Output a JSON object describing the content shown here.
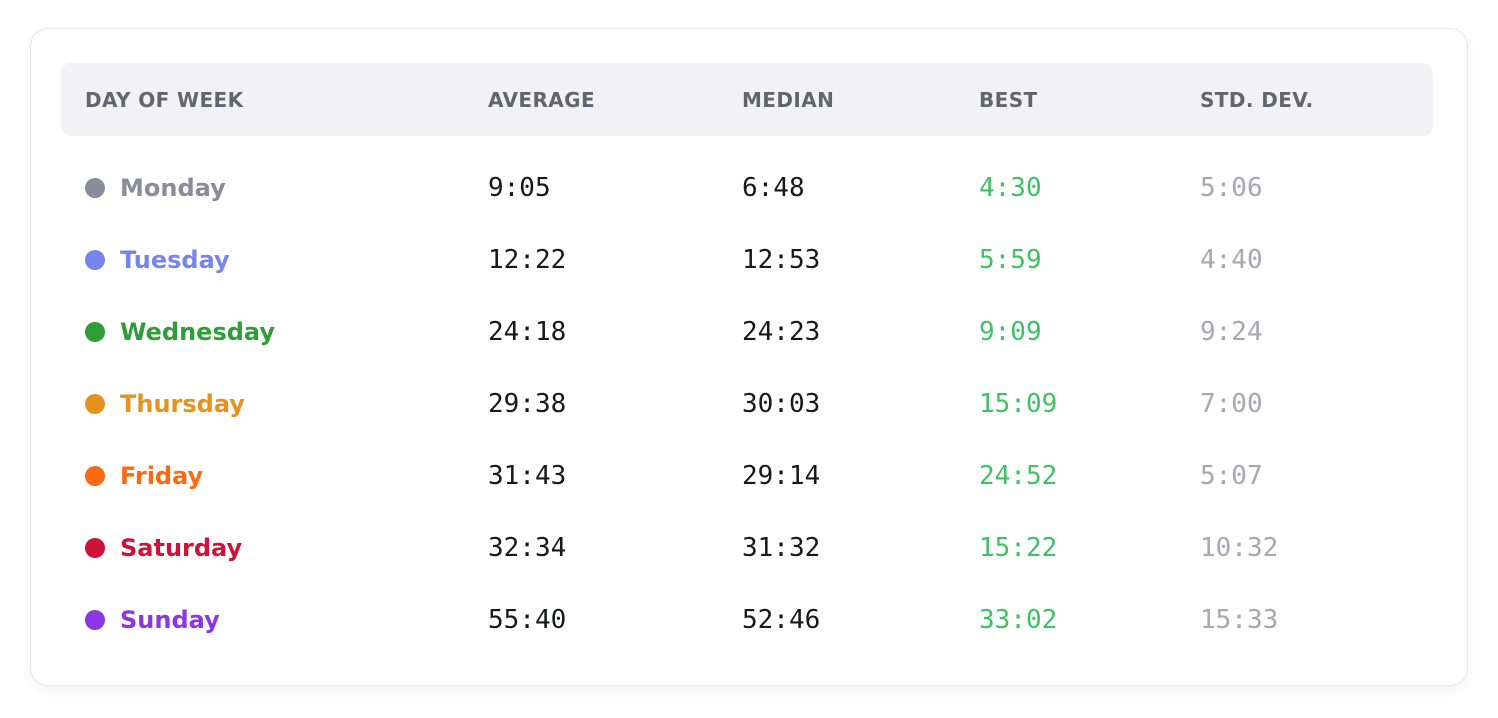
{
  "table": {
    "columns": [
      {
        "key": "day",
        "label": "DAY OF WEEK"
      },
      {
        "key": "average",
        "label": "AVERAGE"
      },
      {
        "key": "median",
        "label": "MEDIAN"
      },
      {
        "key": "best",
        "label": "BEST"
      },
      {
        "key": "std_dev",
        "label": "STD. DEV."
      }
    ],
    "rows": [
      {
        "day": "Monday",
        "color": "#8b8b99",
        "average": "9:05",
        "median": "6:48",
        "best": "4:30",
        "std_dev": "5:06"
      },
      {
        "day": "Tuesday",
        "color": "#7585ec",
        "average": "12:22",
        "median": "12:53",
        "best": "5:59",
        "std_dev": "4:40"
      },
      {
        "day": "Wednesday",
        "color": "#2f9e38",
        "average": "24:18",
        "median": "24:23",
        "best": "9:09",
        "std_dev": "9:24"
      },
      {
        "day": "Thursday",
        "color": "#e6921e",
        "average": "29:38",
        "median": "30:03",
        "best": "15:09",
        "std_dev": "7:00"
      },
      {
        "day": "Friday",
        "color": "#f96a12",
        "average": "31:43",
        "median": "29:14",
        "best": "24:52",
        "std_dev": "5:07"
      },
      {
        "day": "Saturday",
        "color": "#ce1338",
        "average": "32:34",
        "median": "31:32",
        "best": "15:22",
        "std_dev": "10:32"
      },
      {
        "day": "Sunday",
        "color": "#8c35e0",
        "average": "55:40",
        "median": "52:46",
        "best": "33:02",
        "std_dev": "15:33"
      }
    ]
  },
  "colors": {
    "header_bg": "#f2f2f4",
    "header_text": "#64646e",
    "value_text": "#17181c",
    "best_value": "#3fc266",
    "std_dev_value": "#a7a7b0"
  }
}
